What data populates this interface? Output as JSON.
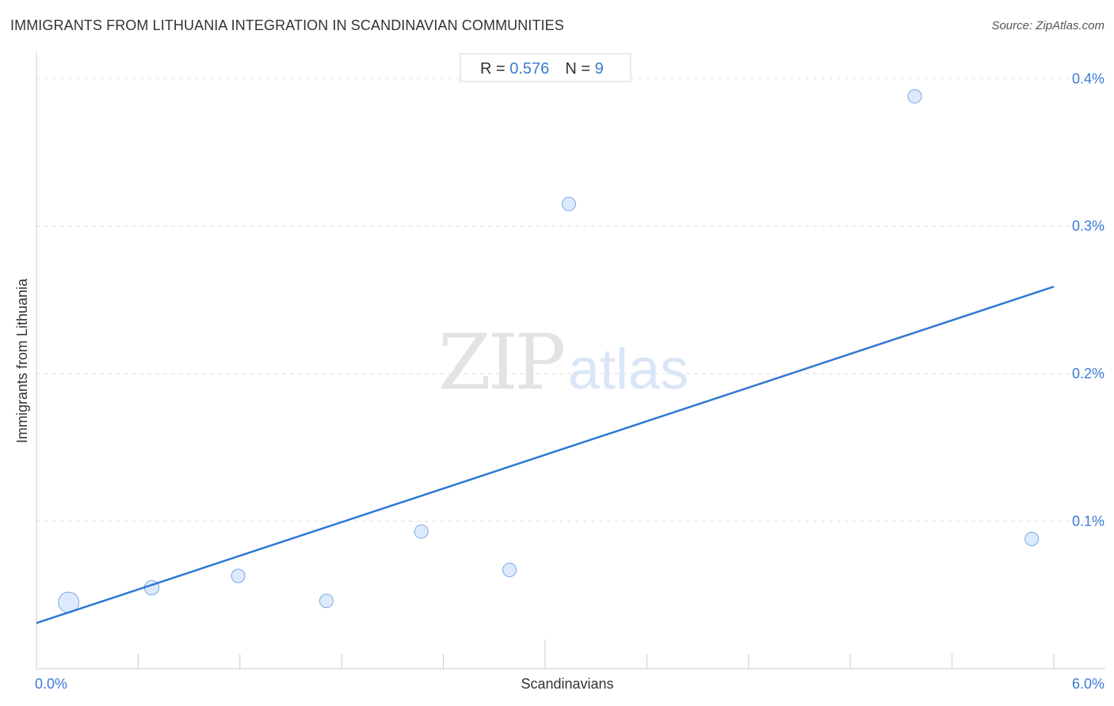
{
  "header": {
    "title": "IMMIGRANTS FROM LITHUANIA INTEGRATION IN SCANDINAVIAN COMMUNITIES",
    "source": "Source: ZipAtlas.com"
  },
  "stats": {
    "r_label": "R = ",
    "r_value": "0.576",
    "n_label": "N = ",
    "n_value": "9"
  },
  "watermark": {
    "zip": "ZIP",
    "atlas": "atlas"
  },
  "colors": {
    "accent": "#3a7bd5",
    "line": "#2f78d4",
    "point_fill": "#d6e6fa",
    "point_stroke": "#7aaae4",
    "grid": "#dddddd"
  },
  "chart_data": {
    "type": "scatter",
    "title": "IMMIGRANTS FROM LITHUANIA INTEGRATION IN SCANDINAVIAN COMMUNITIES",
    "xlabel": "Scandinavians",
    "ylabel": "Immigrants from Lithuania",
    "xlim": [
      0,
      6.0
    ],
    "ylim": [
      0,
      0.42
    ],
    "x_tick_labels": [
      {
        "value": 0,
        "label": "0.0%"
      },
      {
        "value": 6.0,
        "label": "6.0%"
      }
    ],
    "y_tick_labels": [
      {
        "value": 0.1,
        "label": "0.1%"
      },
      {
        "value": 0.2,
        "label": "0.2%"
      },
      {
        "value": 0.3,
        "label": "0.3%"
      },
      {
        "value": 0.4,
        "label": "0.4%"
      }
    ],
    "grid": true,
    "points": [
      {
        "x": 0.19,
        "y": 0.045,
        "size": 3
      },
      {
        "x": 0.68,
        "y": 0.055,
        "size": 1.5
      },
      {
        "x": 1.19,
        "y": 0.063,
        "size": 1.3
      },
      {
        "x": 1.71,
        "y": 0.046,
        "size": 1.3
      },
      {
        "x": 2.27,
        "y": 0.093,
        "size": 1.3
      },
      {
        "x": 2.79,
        "y": 0.067,
        "size": 1.3
      },
      {
        "x": 3.14,
        "y": 0.315,
        "size": 1.3
      },
      {
        "x": 5.18,
        "y": 0.388,
        "size": 1.3
      },
      {
        "x": 5.87,
        "y": 0.088,
        "size": 1.3
      }
    ],
    "trendline": {
      "x": [
        0,
        6.0
      ],
      "y": [
        0.031,
        0.259
      ]
    },
    "stats": {
      "R": 0.576,
      "N": 9
    }
  }
}
